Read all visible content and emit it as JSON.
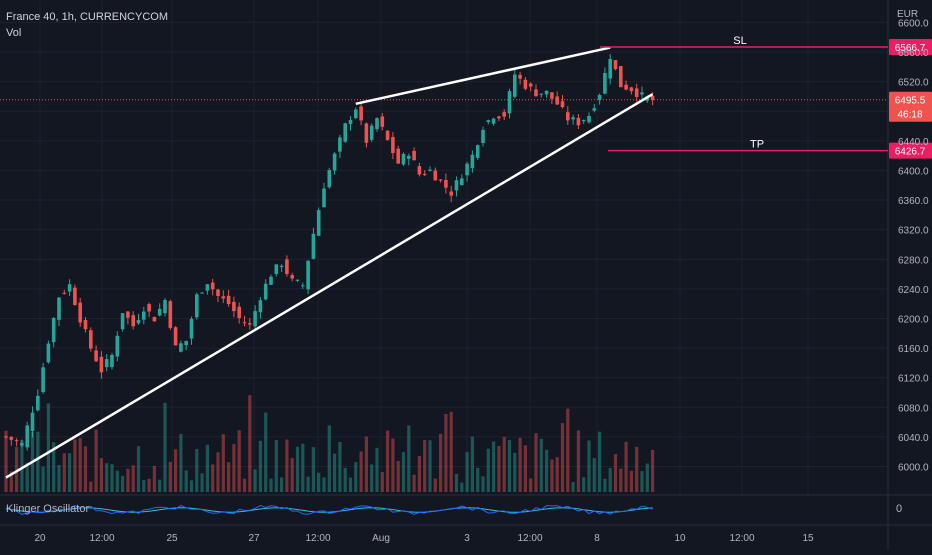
{
  "header": {
    "symbol_line": "France 40, 1h, CURRENCYCOM",
    "volume_label": "Vol"
  },
  "oscillator": {
    "label": "Klinger Oscillator",
    "zero_label": "0"
  },
  "colors": {
    "background": "#131722",
    "grid": "#1e222d",
    "up": "#26a69a",
    "down": "#ef5350",
    "level_line": "#e91e63",
    "trendline": "#ffffff",
    "klinger_line": "#2962ff",
    "klinger_signal": "#26c6da"
  },
  "chart_data": {
    "type": "candlestick",
    "currency": "EUR",
    "y_ticks": [
      "6600.0",
      "6560.0",
      "6520.0",
      "6480.0",
      "6440.0",
      "6400.0",
      "6360.0",
      "6320.0",
      "6280.0",
      "6240.0",
      "6200.0",
      "6160.0",
      "6120.0",
      "6080.0",
      "6040.0",
      "6000.0"
    ],
    "x_ticks": [
      "20",
      "12:00",
      "25",
      "27",
      "12:00",
      "Aug",
      "3",
      "12:00",
      "8",
      "10",
      "12:00",
      "15"
    ],
    "ylim": [
      5975,
      6610
    ],
    "current_price": "6495.5",
    "countdown": "46:18",
    "levels": [
      {
        "label": "SL",
        "price": 6566.7,
        "tag": "6566.7"
      },
      {
        "label": "TP",
        "price": 6426.7,
        "tag": "6426.7"
      }
    ],
    "anchors": [
      [
        0,
        6040
      ],
      [
        3,
        6030
      ],
      [
        6,
        6100
      ],
      [
        8,
        6170
      ],
      [
        10,
        6230
      ],
      [
        12,
        6245
      ],
      [
        14,
        6200
      ],
      [
        16,
        6160
      ],
      [
        18,
        6130
      ],
      [
        20,
        6150
      ],
      [
        22,
        6210
      ],
      [
        24,
        6190
      ],
      [
        26,
        6215
      ],
      [
        28,
        6200
      ],
      [
        30,
        6225
      ],
      [
        32,
        6160
      ],
      [
        34,
        6170
      ],
      [
        36,
        6230
      ],
      [
        38,
        6250
      ],
      [
        40,
        6230
      ],
      [
        42,
        6220
      ],
      [
        44,
        6200
      ],
      [
        46,
        6190
      ],
      [
        48,
        6230
      ],
      [
        50,
        6260
      ],
      [
        52,
        6275
      ],
      [
        54,
        6250
      ],
      [
        56,
        6245
      ],
      [
        58,
        6315
      ],
      [
        60,
        6380
      ],
      [
        62,
        6420
      ],
      [
        64,
        6460
      ],
      [
        66,
        6485
      ],
      [
        68,
        6440
      ],
      [
        70,
        6470
      ],
      [
        72,
        6440
      ],
      [
        74,
        6410
      ],
      [
        76,
        6425
      ],
      [
        78,
        6395
      ],
      [
        80,
        6400
      ],
      [
        82,
        6385
      ],
      [
        84,
        6370
      ],
      [
        86,
        6395
      ],
      [
        88,
        6420
      ],
      [
        90,
        6460
      ],
      [
        92,
        6475
      ],
      [
        94,
        6475
      ],
      [
        96,
        6530
      ],
      [
        98,
        6515
      ],
      [
        100,
        6505
      ],
      [
        102,
        6505
      ],
      [
        104,
        6490
      ],
      [
        106,
        6470
      ],
      [
        108,
        6465
      ],
      [
        110,
        6475
      ],
      [
        112,
        6505
      ],
      [
        114,
        6555
      ],
      [
        116,
        6515
      ],
      [
        118,
        6510
      ],
      [
        120,
        6500
      ],
      [
        122,
        6495
      ]
    ],
    "candle_count": 123,
    "trendlines": [
      {
        "from": [
          0,
          5985
        ],
        "to": [
          122,
          6503
        ]
      },
      {
        "from": [
          66,
          6490
        ],
        "to": [
          114,
          6566
        ]
      }
    ],
    "price_line": 6495.5
  }
}
